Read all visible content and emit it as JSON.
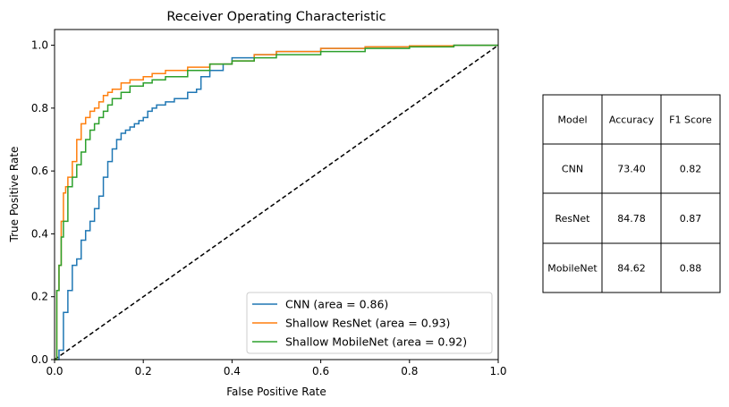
{
  "chart_data": {
    "type": "line",
    "title": "Receiver Operating Characteristic",
    "xlabel": "False Positive Rate",
    "ylabel": "True Positive Rate",
    "xlim": [
      0.0,
      1.0
    ],
    "ylim": [
      0.0,
      1.05
    ],
    "xticks": [
      "0.0",
      "0.2",
      "0.4",
      "0.6",
      "0.8",
      "1.0"
    ],
    "yticks": [
      "0.0",
      "0.2",
      "0.4",
      "0.6",
      "0.8",
      "1.0"
    ],
    "grid": false,
    "legend_position": "lower-right",
    "series": [
      {
        "name": "CNN (area = 0.86)",
        "color": "#1f77b4",
        "style": "step",
        "x": [
          0,
          0.01,
          0.02,
          0.03,
          0.04,
          0.05,
          0.06,
          0.07,
          0.08,
          0.09,
          0.1,
          0.11,
          0.12,
          0.13,
          0.14,
          0.15,
          0.16,
          0.17,
          0.18,
          0.19,
          0.2,
          0.21,
          0.22,
          0.23,
          0.25,
          0.27,
          0.3,
          0.32,
          0.33,
          0.35,
          0.38,
          0.4,
          0.45,
          0.5,
          0.6,
          0.7,
          0.8,
          0.9,
          1.0
        ],
        "y": [
          0,
          0.03,
          0.15,
          0.22,
          0.3,
          0.32,
          0.38,
          0.41,
          0.44,
          0.48,
          0.52,
          0.58,
          0.63,
          0.67,
          0.7,
          0.72,
          0.73,
          0.74,
          0.75,
          0.76,
          0.77,
          0.79,
          0.8,
          0.81,
          0.82,
          0.83,
          0.85,
          0.86,
          0.9,
          0.92,
          0.94,
          0.96,
          0.97,
          0.98,
          0.99,
          0.995,
          0.998,
          1.0,
          1.0
        ]
      },
      {
        "name": "Shallow ResNet (area = 0.93)",
        "color": "#ff7f0e",
        "style": "step",
        "x": [
          0,
          0.005,
          0.01,
          0.015,
          0.02,
          0.025,
          0.03,
          0.04,
          0.05,
          0.06,
          0.07,
          0.08,
          0.09,
          0.1,
          0.11,
          0.12,
          0.13,
          0.15,
          0.17,
          0.2,
          0.22,
          0.25,
          0.3,
          0.35,
          0.4,
          0.45,
          0.5,
          0.6,
          0.7,
          0.8,
          0.9,
          1.0
        ],
        "y": [
          0,
          0.22,
          0.3,
          0.44,
          0.53,
          0.55,
          0.58,
          0.63,
          0.7,
          0.75,
          0.77,
          0.79,
          0.8,
          0.82,
          0.84,
          0.85,
          0.86,
          0.88,
          0.89,
          0.9,
          0.91,
          0.92,
          0.93,
          0.94,
          0.95,
          0.97,
          0.98,
          0.99,
          0.995,
          0.998,
          1.0,
          1.0
        ]
      },
      {
        "name": "Shallow MobileNet (area = 0.92)",
        "color": "#2ca02c",
        "style": "step",
        "x": [
          0,
          0.005,
          0.01,
          0.015,
          0.02,
          0.03,
          0.04,
          0.05,
          0.06,
          0.07,
          0.08,
          0.09,
          0.1,
          0.11,
          0.12,
          0.13,
          0.15,
          0.17,
          0.2,
          0.22,
          0.25,
          0.3,
          0.35,
          0.4,
          0.45,
          0.5,
          0.6,
          0.7,
          0.8,
          0.9,
          1.0
        ],
        "y": [
          0,
          0.22,
          0.3,
          0.39,
          0.44,
          0.55,
          0.58,
          0.62,
          0.66,
          0.7,
          0.73,
          0.75,
          0.77,
          0.79,
          0.81,
          0.83,
          0.85,
          0.87,
          0.88,
          0.89,
          0.9,
          0.92,
          0.94,
          0.95,
          0.96,
          0.97,
          0.98,
          0.99,
          0.995,
          1.0,
          1.0
        ]
      }
    ],
    "reference_line": {
      "x": [
        0,
        1
      ],
      "y": [
        0,
        1
      ],
      "color": "#000000",
      "style": "dashed"
    },
    "table": {
      "columns": [
        "Model",
        "Accuracy",
        "F1 Score"
      ],
      "rows": [
        [
          "CNN",
          "73.40",
          "0.82"
        ],
        [
          "ResNet",
          "84.78",
          "0.87"
        ],
        [
          "MobileNet",
          "84.62",
          "0.88"
        ]
      ]
    }
  }
}
